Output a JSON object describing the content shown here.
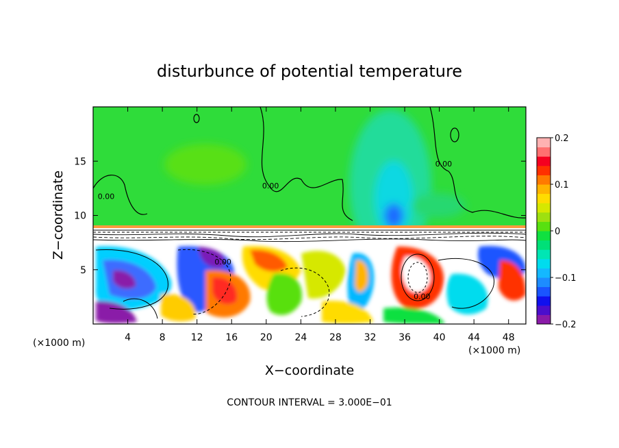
{
  "chart_data": {
    "type": "heatmap",
    "title": "disturbunce of potential temperature",
    "xlabel": "X−coordinate",
    "ylabel": "Z−coordinate",
    "x_unit_left": "(×1000 m)",
    "x_unit_right": "(×1000 m)",
    "xlim": [
      0,
      50
    ],
    "ylim": [
      0,
      20
    ],
    "xticks": [
      4,
      8,
      12,
      16,
      20,
      24,
      28,
      32,
      36,
      40,
      44,
      48
    ],
    "xtick_labels": [
      "4",
      "8",
      "12",
      "16",
      "20",
      "24",
      "28",
      "32",
      "36",
      "40",
      "44",
      "48"
    ],
    "yticks": [
      5,
      10,
      15
    ],
    "ytick_labels": [
      "5",
      "10",
      "15"
    ],
    "footer": "CONTOUR INTERVAL = 3.000E−01",
    "contour_labels": [
      {
        "text": "0.00",
        "x": 1.5,
        "y": 11.5
      },
      {
        "text": "0.00",
        "x": 20.5,
        "y": 12.5
      },
      {
        "text": "0.00",
        "x": 40.5,
        "y": 14.5
      },
      {
        "text": "0.00",
        "x": 15.0,
        "y": 5.5
      },
      {
        "text": "0.00",
        "x": 38.0,
        "y": 2.3
      }
    ],
    "colorbar": {
      "min": -0.2,
      "max": 0.2,
      "ticks": [
        0.2,
        0.1,
        0,
        -0.1,
        -0.2
      ],
      "tick_labels": [
        "0.2",
        "0.1",
        "0",
        "−0.1",
        "−0.2"
      ],
      "colors": [
        "#8a1aa8",
        "#4b0ecc",
        "#1010ee",
        "#1a55ff",
        "#1d8cff",
        "#14b8ff",
        "#00dcee",
        "#00e6b4",
        "#00e078",
        "#10e040",
        "#58e010",
        "#9ee010",
        "#d6e800",
        "#ffdc00",
        "#ffb400",
        "#ff7a00",
        "#ff3000",
        "#f50020",
        "#ff7070",
        "#ffb2b2"
      ]
    },
    "regions": {
      "upper": {
        "z_range": [
          9.0,
          20
        ],
        "dominant_value": 0.0
      },
      "inversion_layer": {
        "z_range": [
          7.6,
          9.0
        ],
        "dominant_value": 0.0
      },
      "lower": {
        "z_range": [
          0,
          7.6
        ],
        "note_values": [
          -0.2,
          0.2
        ]
      }
    }
  }
}
